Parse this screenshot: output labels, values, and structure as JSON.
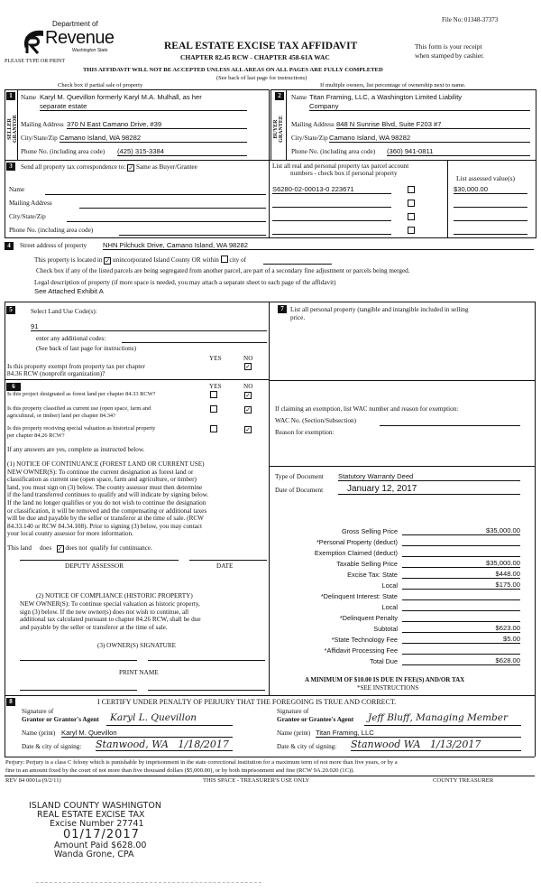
{
  "header": {
    "file_no": "File No: 01348-37373",
    "logo": {
      "line1": "Department of",
      "line2": "Revenue",
      "line3": "Washington State"
    },
    "please_type": "PLEASE TYPE OR PRINT",
    "title": "REAL ESTATE EXCISE TAX AFFIDAVIT",
    "subtitle": "CHAPTER 82.45 RCW - CHAPTER 458-61A WAC",
    "receipt_note_1": "This form is your receipt",
    "receipt_note_2": "when stamped by cashier.",
    "warning": "THIS AFFIDAVIT WILL NOT BE ACCEPTED UNLESS ALL AREAS ON ALL PAGES ARE FULLY COMPLETED",
    "see_back": "(See back of last page for instructions)",
    "partial_sale": "Check box if partial sale of property",
    "multiple_owners": "If multiple owners, list percentage of ownership next to name."
  },
  "seller": {
    "num": "1",
    "side_label": "SELLER GRANTOR",
    "name_label": "Name",
    "name_1": "Karyl M. Quevillon formerly Karyl M.A. Mulhall, as her",
    "name_2": "separate estate",
    "address_label": "Mailing Address",
    "address": "370 N East Camano Drive, #39",
    "city_label": "City/State/Zip",
    "city": "Camano Island, WA 98282",
    "phone_label": "Phone No. (including area code)",
    "phone": "(425) 315-3384"
  },
  "buyer": {
    "num": "2",
    "side_label": "BUYER GRANTEE",
    "name_label": "Name",
    "name_1": "Titan Framing, LLC, a Washington Limited Liability",
    "name_2": "Company",
    "address_label": "Mailing Address",
    "address": "848 N Sunrise Blvd, Suite F203 #7",
    "city_label": "City/State/Zip",
    "city": "Camano Island, WA 98282",
    "phone_label": "Phone No. (including area code)",
    "phone": "(360) 941-0811"
  },
  "section3": {
    "num": "3",
    "send_label": "Send all property tax correspondence to:",
    "same_as": "Same as Buyer/Grantee",
    "same_as_checked": true,
    "name_label": "Name",
    "address_label": "Mailing Address",
    "city_label": "City/State/Zip",
    "phone_label": "Phone No. (including area code)",
    "parcel_header_1": "List all real and personal property tax parcel account",
    "parcel_header_2": "numbers - check box if personal property",
    "assessed_header": "List assessed value(s)",
    "parcels": [
      {
        "number": "S6280-02-00013-0  223671",
        "personal": false,
        "value": "$30,000.00"
      },
      {
        "number": "",
        "personal": false,
        "value": ""
      },
      {
        "number": "",
        "personal": false,
        "value": ""
      },
      {
        "number": "",
        "personal": false,
        "value": ""
      }
    ]
  },
  "section4": {
    "num": "4",
    "street_label": "Street address of property",
    "street": "NHN Pilchuck Drive, Camano Island, WA 98282",
    "located_1": "This property is located in",
    "located_2": "unincorporated Island County OR within",
    "located_3": "city of",
    "unincorporated_checked": true,
    "city_checked": false,
    "segregated_note": "Check box if any of the listed parcels are being segregated from another parcel, are part of a secondary fine adjustment or parcels being merged.",
    "legal_label": "Legal description of property (if more space is needed, you may attach a separate sheet to each page of the affidavit)",
    "legal": "See Attached Exhibit A"
  },
  "section5": {
    "num": "5",
    "land_use_label": "Select Land Use Code(s):",
    "land_use": "91",
    "additional_label": "enter any additional codes:",
    "see_back": "(See back of last page for instructions)",
    "yes": "YES",
    "no": "NO",
    "exempt_q_1": "Is this property exempt from property tax per chapter",
    "exempt_q_2": "84.36 RCW (nonprofit organization)?",
    "exempt_answer": "NO"
  },
  "section6": {
    "num": "6",
    "yes": "YES",
    "no": "NO",
    "questions": [
      {
        "text_1": "Is this project designated as forest land per chapter 84.33 RCW?",
        "text_2": "",
        "answer": "NO"
      },
      {
        "text_1": "Is this property classified as current use (open space, farm and",
        "text_2": "agricultural, or timber) land per chapter 84.34?",
        "answer": "NO"
      },
      {
        "text_1": "Is this property receiving special valuation as historical property",
        "text_2": "per chapter 84.26 RCW?",
        "answer": "NO"
      }
    ],
    "if_yes": "If any answers are yes, complete as instructed below.",
    "notice1": [
      "(1) NOTICE OF CONTINUANCE (FOREST LAND OR CURRENT USE)",
      "NEW OWNER(S):  To continue the current designation as forest land or",
      "classification as current use (open space, farm and agriculture, or timber)",
      "land, you must sign on (3) below.  The county assessor must then determine",
      "if the land transferred continues to qualify and will indicate by signing below.",
      "If the land no longer qualifies or you do not wish to continue the designation",
      "or classification, it will be removed and the compensating or additional taxes",
      "will be due and payable by the seller or transferor at the time of sale.  (RCW",
      "84.33.140 or RCW 84.34.108).  Prior to signing (3) below, you may contact",
      "your local county assessor for more information."
    ],
    "this_land": "This land",
    "does": "does",
    "does_not": "does not",
    "qualify": "qualify for continuance.",
    "does_not_checked": true,
    "deputy_assessor": "DEPUTY ASSESSOR",
    "date": "DATE",
    "notice2_title": "(2) NOTICE OF COMPLIANCE (HISTORIC PROPERTY)",
    "notice2": [
      "NEW OWNER(S):  To continue special valuation as historic property,",
      "sign (3) below.  If the new owner(s) does not wish to continue, all",
      "additional tax calculated pursuant to chapter 84.26 RCW, shall be due",
      "and payable by the seller or transferor at the time of sale."
    ],
    "owner_signature": "(3) OWNER(S) SIGNATURE",
    "print_name": "PRINT NAME"
  },
  "section7": {
    "num": "7",
    "personal_label_1": "List all personal property (tangible and intangible included in selling",
    "personal_label_2": "price.",
    "exemption_label": "If claiming an exemption, list WAC number and reason for exemption:",
    "wac_label": "WAC No. (Section/Subsection)",
    "reason_label": "Reason for exemption:",
    "doc_type_label": "Type of Document",
    "doc_type": "Statutory Warranty Deed",
    "doc_date_label": "Date of Document",
    "doc_date": "January 12, 2017",
    "amounts": [
      {
        "label": "Gross Selling Price",
        "value": "$35,000.00"
      },
      {
        "label": "*Personal Property (deduct)",
        "value": ""
      },
      {
        "label": "Exemption Claimed (deduct)",
        "value": ""
      },
      {
        "label": "Taxable Selling Price",
        "value": "$35,000.00"
      },
      {
        "label": "Excise Tax:  State",
        "value": "$448.00"
      },
      {
        "label": "Local",
        "value": "$175.00"
      },
      {
        "label": "*Delinquent Interest:  State",
        "value": ""
      },
      {
        "label": "Local",
        "value": ""
      },
      {
        "label": "*Delinquent Penalty",
        "value": ""
      },
      {
        "label": "Subtotal",
        "value": "$623.00"
      },
      {
        "label": "*State Technology Fee",
        "value": "$5.00"
      },
      {
        "label": "*Affidavit Processing Fee",
        "value": ""
      },
      {
        "label": "Total Due",
        "value": "$628.00"
      }
    ],
    "minimum": "A MINIMUM OF $10.00 IS DUE IN FEE(S) AND/OR TAX",
    "see_instructions": "*SEE INSTRUCTIONS"
  },
  "section8": {
    "num": "8",
    "certify": "I CERTIFY UNDER PENALTY OF PERJURY THAT THE FOREGOING IS TRUE AND CORRECT.",
    "grantor_sig_label_1": "Signature of",
    "grantor_sig_label_2": "Grantor or Grantor's Agent",
    "grantor_signature": "Karyl L. Quevillon",
    "grantor_name_label": "Name (print)",
    "grantor_name": "Karyl M. Quevillon",
    "grantor_date_label": "Date & city of signing:",
    "grantor_date": "Stanwood, WA   1/18/2017",
    "grantee_sig_label_1": "Signature of",
    "grantee_sig_label_2": "Grantee or Grantee's Agent",
    "grantee_signature": "Jeff Bluff, Managing Member",
    "grantee_name_label": "Name (print)",
    "grantee_name": "Titan Framing, LLC",
    "grantee_date_label": "Date & city of signing:",
    "grantee_date": "Stanwood WA   1/13/2017"
  },
  "footer": {
    "perjury_1": "Perjury:  Perjury is a class C felony which is punishable by imprisonment in the state correctional institution for a maximum term of not more than five years, or by a",
    "perjury_2": "fine in an amount fixed by the court of not more than five thousand dollars ($5,000.00), or by both imprisonment and fine (RCW 9A.20.020 (1C)).",
    "rev": "REV 84 0001a (9/2/11)",
    "treasurer_use": "THIS SPACE - TREASURER'S USE ONLY",
    "county_treasurer": "COUNTY TREASURER"
  },
  "stamp": {
    "line1": "ISLAND COUNTY WASHINGTON",
    "line2": "REAL ESTATE EXCISE TAX",
    "line3": "Excise Number 27741",
    "date": "01/17/2017",
    "amount": "Amount Paid $628.00",
    "signer": "Wanda Grone, CPA"
  }
}
